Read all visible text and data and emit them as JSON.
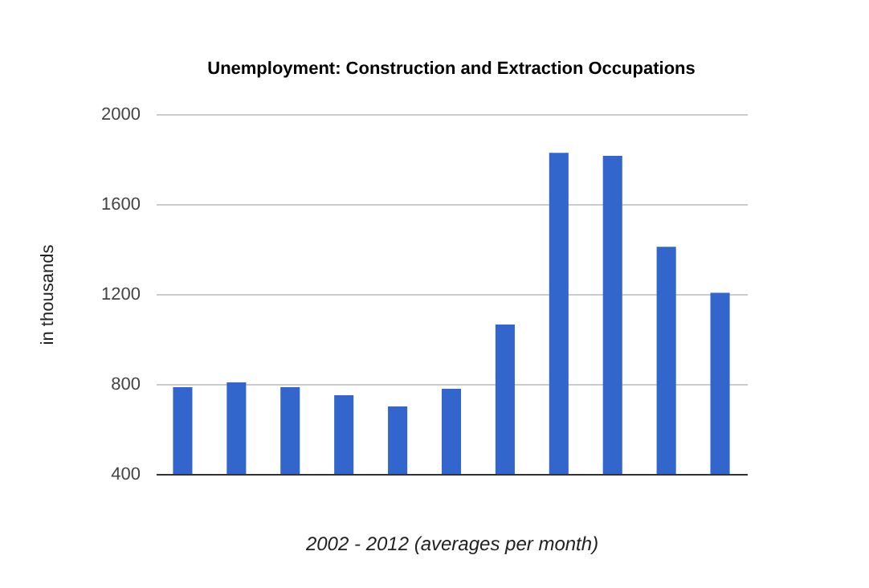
{
  "chart_data": {
    "type": "bar",
    "title": "Unemployment: Construction and Extraction Occupations",
    "xlabel": "2002 - 2012 (averages per month)",
    "ylabel": "in thousands",
    "categories": [
      null,
      null,
      null,
      null,
      null,
      null,
      null,
      null,
      null,
      null,
      null
    ],
    "values": [
      786,
      807,
      786,
      750,
      700,
      779,
      1064,
      1828,
      1814,
      1410,
      1205
    ],
    "color": "#3366cc",
    "ylim": [
      400,
      2000
    ],
    "yticks": [
      400,
      800,
      1200,
      1600,
      2000
    ],
    "grid": true
  }
}
